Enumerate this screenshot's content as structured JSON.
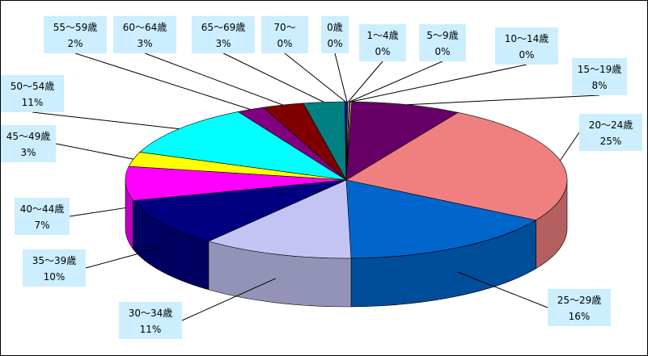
{
  "chart_data": {
    "type": "pie",
    "style": "3d",
    "title": "",
    "legend": "none",
    "categories": [
      "0歳",
      "1～4歳",
      "5～9歳",
      "10～14歳",
      "15～19歳",
      "20～24歳",
      "25～29歳",
      "30～34歳",
      "35～39歳",
      "40～44歳",
      "45～49歳",
      "50～54歳",
      "55～59歳",
      "60～64歳",
      "65～69歳",
      "70～"
    ],
    "values": [
      0.1,
      0.1,
      0.1,
      0.1,
      8,
      25,
      16,
      11,
      10,
      7,
      3,
      11,
      2,
      3,
      3,
      0.1
    ],
    "value_labels": [
      "0%",
      "0%",
      "0%",
      "0%",
      "8%",
      "25%",
      "16%",
      "11%",
      "10%",
      "7%",
      "3%",
      "11%",
      "2%",
      "3%",
      "3%",
      "0%"
    ],
    "colors": [
      "#800080",
      "#c0c0c0",
      "#808080",
      "#ffcc99",
      "#660066",
      "#f08080",
      "#0066cc",
      "#c4c4f4",
      "#000080",
      "#ff00ff",
      "#ffff00",
      "#00ffff",
      "#800080",
      "#800000",
      "#008080",
      "#0000ff"
    ],
    "label_background": "#cceeff"
  }
}
